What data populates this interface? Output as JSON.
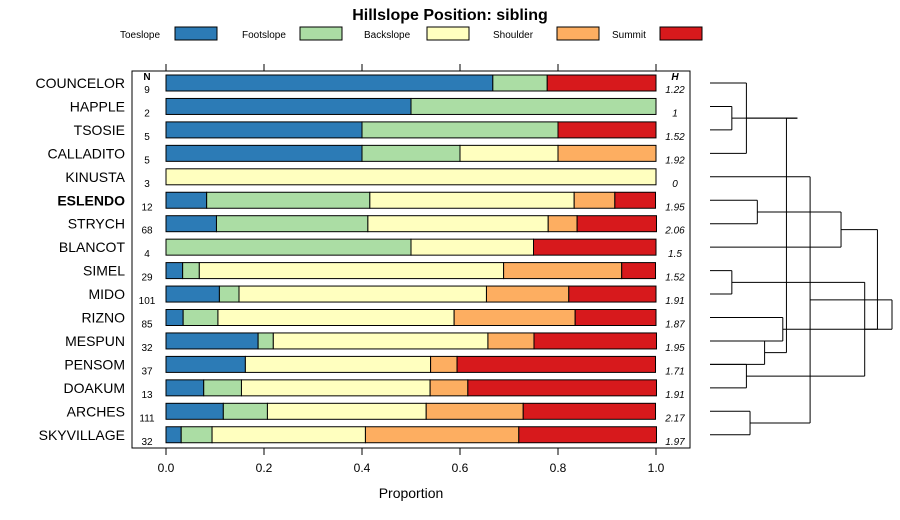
{
  "chart_data": {
    "type": "bar",
    "stacked": true,
    "orientation": "horizontal",
    "title": "Hillslope Position: sibling",
    "xlabel": "Proportion",
    "ylabel": "",
    "xlim": [
      0,
      1
    ],
    "x_ticks": [
      "0.0",
      "0.2",
      "0.4",
      "0.6",
      "0.8",
      "1.0"
    ],
    "x_tick_values": [
      0,
      0.2,
      0.4,
      0.6,
      0.8,
      1.0
    ],
    "n_header": "N",
    "h_header": "H",
    "legend": {
      "position": "top",
      "entries": [
        {
          "label": "Toeslope",
          "color": "#2c7bb6"
        },
        {
          "label": "Footslope",
          "color": "#abdda4"
        },
        {
          "label": "Backslope",
          "color": "#ffffbf"
        },
        {
          "label": "Shoulder",
          "color": "#fdae61"
        },
        {
          "label": "Summit",
          "color": "#d7191c"
        }
      ]
    },
    "highlight": "ESLENDO",
    "rows": [
      {
        "name": "COUNCELOR",
        "n": "9",
        "h": "1.22",
        "values": [
          0.667,
          0.111,
          0,
          0,
          0.222
        ]
      },
      {
        "name": "HAPPLE",
        "n": "2",
        "h": "1",
        "values": [
          0.5,
          0.5,
          0,
          0,
          0
        ]
      },
      {
        "name": "TSOSIE",
        "n": "5",
        "h": "1.52",
        "values": [
          0.4,
          0.4,
          0,
          0,
          0.2
        ]
      },
      {
        "name": "CALLADITO",
        "n": "5",
        "h": "1.92",
        "values": [
          0.4,
          0.2,
          0.2,
          0.2,
          0
        ]
      },
      {
        "name": "KINUSTA",
        "n": "3",
        "h": "0",
        "values": [
          0,
          0,
          1.0,
          0,
          0
        ]
      },
      {
        "name": "ESLENDO",
        "n": "12",
        "h": "1.95",
        "values": [
          0.083,
          0.333,
          0.417,
          0.083,
          0.083
        ]
      },
      {
        "name": "STRYCH",
        "n": "68",
        "h": "2.06",
        "values": [
          0.103,
          0.309,
          0.368,
          0.059,
          0.162
        ]
      },
      {
        "name": "BLANCOT",
        "n": "4",
        "h": "1.5",
        "values": [
          0,
          0.5,
          0.25,
          0,
          0.25
        ]
      },
      {
        "name": "SIMEL",
        "n": "29",
        "h": "1.52",
        "values": [
          0.034,
          0.034,
          0.621,
          0.241,
          0.069
        ]
      },
      {
        "name": "MIDO",
        "n": "101",
        "h": "1.91",
        "values": [
          0.109,
          0.04,
          0.505,
          0.168,
          0.178
        ]
      },
      {
        "name": "RIZNO",
        "n": "85",
        "h": "1.87",
        "values": [
          0.035,
          0.071,
          0.482,
          0.247,
          0.165
        ]
      },
      {
        "name": "MESPUN",
        "n": "32",
        "h": "1.95",
        "values": [
          0.188,
          0.031,
          0.438,
          0.094,
          0.25
        ]
      },
      {
        "name": "PENSOM",
        "n": "37",
        "h": "1.71",
        "values": [
          0.162,
          0,
          0.378,
          0.054,
          0.405
        ]
      },
      {
        "name": "DOAKUM",
        "n": "13",
        "h": "1.91",
        "values": [
          0.077,
          0.077,
          0.385,
          0.077,
          0.385
        ]
      },
      {
        "name": "ARCHES",
        "n": "111",
        "h": "2.17",
        "values": [
          0.117,
          0.09,
          0.324,
          0.198,
          0.27
        ]
      },
      {
        "name": "SKYVILLAGE",
        "n": "32",
        "h": "1.97",
        "values": [
          0.031,
          0.063,
          0.313,
          0.313,
          0.281
        ]
      }
    ],
    "dendrogram_merges": [
      [
        1,
        2
      ],
      [
        0,
        3
      ],
      [
        5,
        6
      ],
      [
        8,
        9
      ],
      [
        12,
        13
      ],
      [
        14,
        15
      ],
      [
        11,
        12
      ],
      [
        10,
        11
      ],
      [
        16,
        17
      ],
      [
        7,
        18
      ],
      [
        19,
        20
      ],
      [
        4,
        21
      ],
      [
        22,
        24
      ],
      [
        23,
        25
      ],
      [
        26,
        27
      ]
    ],
    "dendrogram_heights": [
      0.12,
      0.2,
      0.26,
      0.12,
      0.2,
      0.22,
      0.3,
      0.4,
      0.48,
      0.72,
      0.85,
      0.55,
      0.42,
      0.92,
      1.0
    ]
  }
}
